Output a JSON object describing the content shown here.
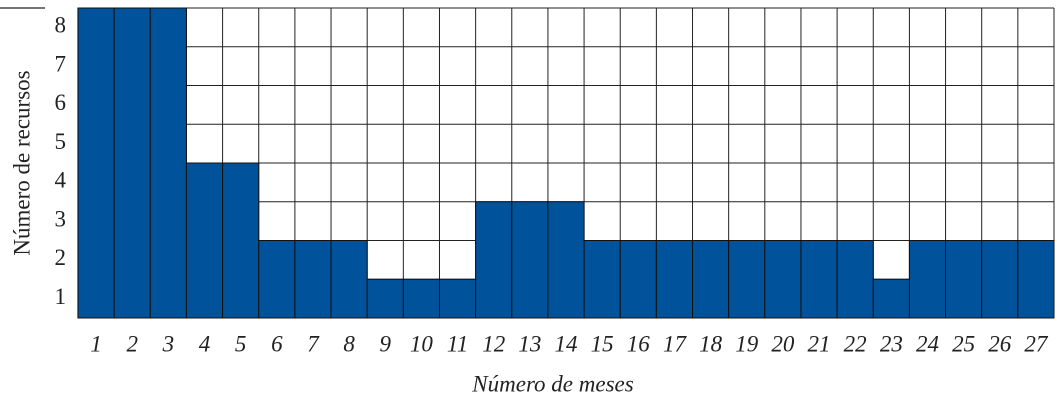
{
  "chart_data": {
    "type": "bar",
    "xlabel": "Número de meses",
    "ylabel": "Número de recursos",
    "categories": [
      "1",
      "2",
      "3",
      "4",
      "5",
      "6",
      "7",
      "8",
      "9",
      "10",
      "11",
      "12",
      "13",
      "14",
      "15",
      "16",
      "17",
      "18",
      "19",
      "20",
      "21",
      "22",
      "23",
      "24",
      "25",
      "26",
      "27"
    ],
    "values": [
      8,
      8,
      8,
      4,
      4,
      2,
      2,
      2,
      1,
      1,
      1,
      3,
      3,
      3,
      2,
      2,
      2,
      2,
      2,
      2,
      2,
      2,
      1,
      2,
      2,
      2,
      2
    ],
    "color": "#00529b",
    "ylim": [
      0,
      8
    ],
    "yticks": [
      1,
      2,
      3,
      4,
      5,
      6,
      7,
      8
    ],
    "grid": true
  }
}
